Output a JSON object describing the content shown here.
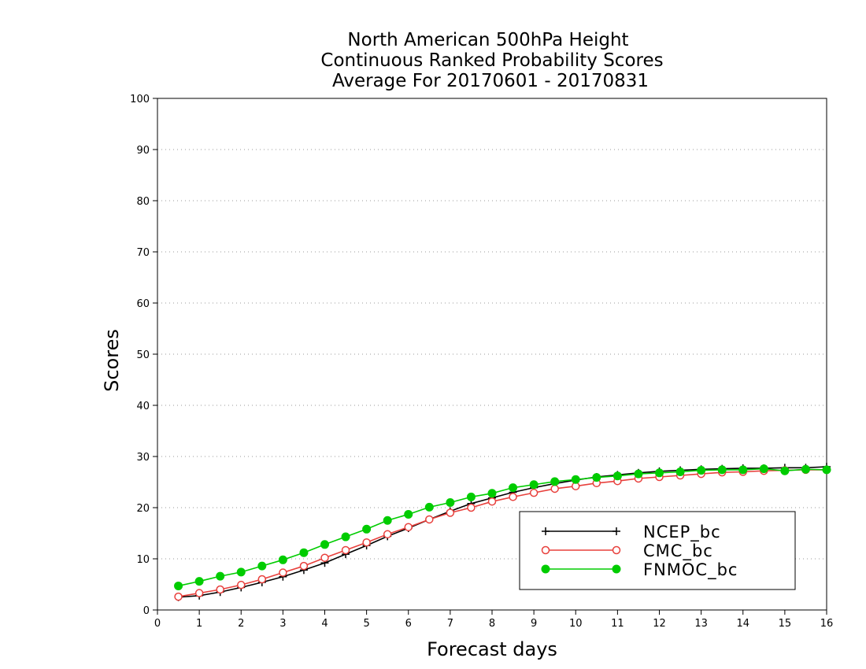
{
  "chart_data": {
    "type": "line",
    "title": [
      "North American 500hPa Height",
      "Continuous Ranked Probability Scores",
      "Average For 20170601 - 20170831"
    ],
    "xlabel": "Forecast days",
    "ylabel": "Scores",
    "xlim": [
      0,
      16
    ],
    "ylim": [
      0,
      100
    ],
    "xticks": [
      "0",
      "1",
      "2",
      "3",
      "4",
      "5",
      "6",
      "7",
      "8",
      "9",
      "10",
      "11",
      "12",
      "13",
      "14",
      "15",
      "16"
    ],
    "yticks": [
      "0",
      "10",
      "20",
      "30",
      "40",
      "50",
      "60",
      "70",
      "80",
      "90",
      "100"
    ],
    "grid": "horizontal dotted",
    "legend_position": "bottom-right",
    "x": [
      0.5,
      1,
      1.5,
      2,
      2.5,
      3,
      3.5,
      4,
      4.5,
      5,
      5.5,
      6,
      6.5,
      7,
      7.5,
      8,
      8.5,
      9,
      9.5,
      10,
      10.5,
      11,
      11.5,
      12,
      12.5,
      13,
      13.5,
      14,
      14.5,
      15,
      15.5,
      16
    ],
    "series": [
      {
        "name": "NCEP_bc",
        "color": "#000000",
        "marker": "plus",
        "values": [
          2.5,
          2.8,
          3.5,
          4.4,
          5.4,
          6.5,
          7.8,
          9.2,
          10.9,
          12.6,
          14.4,
          16.0,
          17.7,
          19.3,
          20.8,
          21.9,
          23.0,
          23.9,
          24.7,
          25.4,
          26.0,
          26.4,
          26.8,
          27.1,
          27.3,
          27.5,
          27.6,
          27.7,
          27.7,
          27.8,
          27.8,
          28.0
        ]
      },
      {
        "name": "CMC_bc",
        "color": "#e8403c",
        "marker": "open-circle",
        "values": [
          2.6,
          3.3,
          4.0,
          4.9,
          6.0,
          7.3,
          8.6,
          10.2,
          11.7,
          13.2,
          14.8,
          16.2,
          17.7,
          19.0,
          20.0,
          21.2,
          22.1,
          22.9,
          23.7,
          24.2,
          24.8,
          25.2,
          25.7,
          26.0,
          26.3,
          26.6,
          26.9,
          27.0,
          27.2,
          27.3,
          27.4,
          27.4
        ]
      },
      {
        "name": "FNMOC_bc",
        "color": "#00cc00",
        "marker": "filled-circle",
        "values": [
          4.7,
          5.6,
          6.6,
          7.4,
          8.6,
          9.8,
          11.2,
          12.8,
          14.3,
          15.8,
          17.5,
          18.7,
          20.1,
          21.0,
          22.1,
          22.8,
          23.9,
          24.5,
          25.1,
          25.5,
          25.9,
          26.2,
          26.6,
          26.8,
          27.0,
          27.3,
          27.4,
          27.4,
          27.6,
          27.2,
          27.5,
          27.4
        ]
      }
    ]
  }
}
